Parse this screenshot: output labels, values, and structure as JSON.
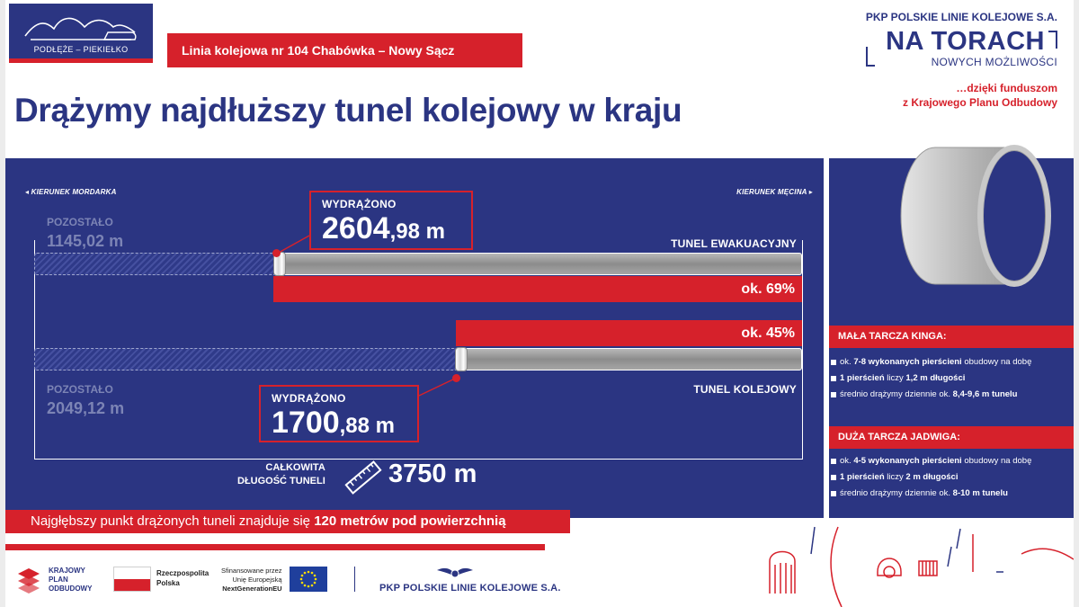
{
  "header": {
    "logo_label": "PODŁĘŻE – PIEKIEŁKO",
    "line_label": "Linia kolejowa nr 104 Chabówka – Nowy Sącz",
    "title": "Drążymy najdłuższy tunel kolejowy w kraju"
  },
  "brand": {
    "company": "PKP POLSKIE LINIE KOLEJOWE S.A.",
    "na_torach": "NA TORACH",
    "nowych": "NOWYCH MOŻLIWOŚCI",
    "funding_1": "…dzięki funduszom",
    "funding_2": "z Krajowego Planu Odbudowy"
  },
  "tunnels": {
    "dir_left": "◂ KIERUNEK MORDARKA",
    "dir_right": "KIERUNEK MĘCINA ▸",
    "evac": {
      "name": "TUNEL EWAKUACYJNY",
      "remaining_label": "POZOSTAŁO",
      "remaining_value": "1145,02 m",
      "drilled_label": "WYDRĄŻONO",
      "drilled_int": "2604",
      "drilled_dec": ",98 m",
      "percent_label": "ok. 69%",
      "progress": 0.69
    },
    "rail": {
      "name": "TUNEL KOLEJOWY",
      "remaining_label": "POZOSTAŁO",
      "remaining_value": "2049,12 m",
      "drilled_label": "WYDRĄŻONO",
      "drilled_int": "1700",
      "drilled_dec": ",88 m",
      "percent_label": "ok. 45%",
      "progress": 0.45
    },
    "total_label_1": "CAŁKOWITA",
    "total_label_2": "DŁUGOŚĆ TUNELI",
    "total_value": "3750 m"
  },
  "depth": {
    "prefix": "Najgłębszy punkt drążonych tuneli znajduje się ",
    "bold": "120 metrów pod powierzchnią"
  },
  "info": {
    "kinga": {
      "title": "MAŁA TARCZA KINGA:",
      "items": [
        {
          "pre": "ok. ",
          "b1": "7-8 wykonanych pierścieni",
          "post": " obudowy na dobę",
          "b2": ""
        },
        {
          "pre": "",
          "b1": "1 pierścień",
          "post": " liczy ",
          "b2": "1,2 m długości"
        },
        {
          "pre": "średnio drążymy dziennie ok. ",
          "b1": "8,4-9,6 m tunelu",
          "post": "",
          "b2": ""
        }
      ]
    },
    "jadwiga": {
      "title": "DUŻA TARCZA JADWIGA:",
      "items": [
        {
          "pre": "ok. ",
          "b1": "4-5 wykonanych pierścieni",
          "post": " obudowy na dobę",
          "b2": ""
        },
        {
          "pre": "",
          "b1": "1 pierścień",
          "post": " liczy ",
          "b2": "2 m długości"
        },
        {
          "pre": "średnio drążymy dziennie ok. ",
          "b1": "8-10 m tunelu",
          "post": "",
          "b2": ""
        }
      ]
    }
  },
  "footer": {
    "kpo_1": "KRAJOWY",
    "kpo_2": "PLAN",
    "kpo_3": "ODBUDOWY",
    "pl_1": "Rzeczpospolita",
    "pl_2": "Polska",
    "eu_1": "Sfinansowane przez",
    "eu_2": "Unię Europejską",
    "eu_3": "NextGenerationEU",
    "pkp": "PKP POLSKIE LINIE KOLEJOWE S.A."
  },
  "colors": {
    "navy": "#2b3582",
    "red": "#d6212b"
  }
}
